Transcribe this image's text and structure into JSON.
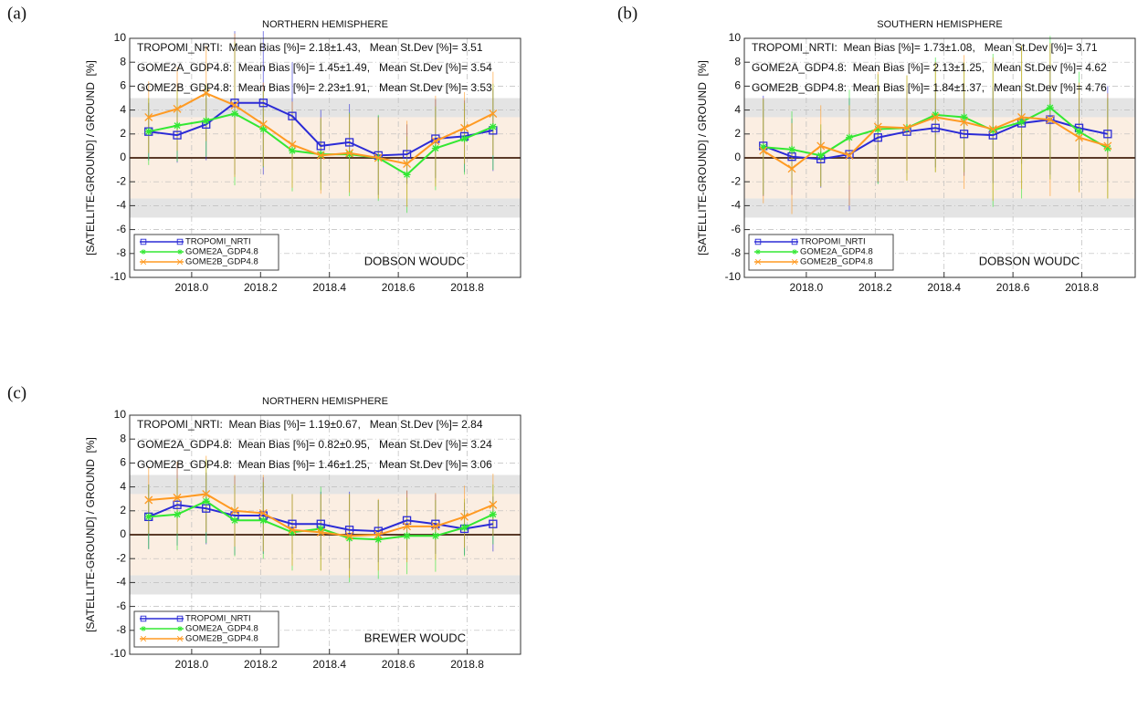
{
  "chart_data": [
    {
      "type": "line",
      "panel_label": "(a)",
      "title": "NORTHERN HEMISPHERE",
      "ylabel": "[SATELLITE-GROUND] / GROUND  [%]",
      "annotations": [
        "TROPOMI_NRTI:  Mean Bias [%]= 2.18±1.43,   Mean St.Dev [%]= 3.51",
        "GOME2A_GDP4.8:  Mean Bias [%]= 1.45±1.49,   Mean St.Dev [%]= 3.54",
        "GOME2B_GDP4.8:  Mean Bias [%]= 2.23±1.91,   Mean St.Dev [%]= 3.53"
      ],
      "station": "DOBSON WOUDC",
      "x": [
        2017.875,
        2017.958,
        2018.042,
        2018.125,
        2018.208,
        2018.292,
        2018.375,
        2018.458,
        2018.542,
        2018.625,
        2018.708,
        2018.792,
        2018.875
      ],
      "series": [
        {
          "name": "TROPOMI_NRTI",
          "color": "#2b2bd6",
          "marker": "square",
          "values": [
            2.2,
            1.9,
            2.8,
            4.6,
            4.6,
            3.5,
            1.0,
            1.3,
            0.2,
            0.3,
            1.6,
            1.8,
            2.3
          ],
          "errors": [
            2.4,
            2.3,
            3.0,
            6.0,
            6.0,
            4.5,
            3.0,
            3.2,
            3.3,
            2.5,
            3.3,
            3.0,
            3.4
          ]
        },
        {
          "name": "GOME2A_GDP4.8",
          "color": "#33e833",
          "marker": "asterisk",
          "values": [
            2.2,
            2.7,
            3.1,
            3.7,
            2.4,
            0.6,
            0.3,
            0.3,
            0.0,
            -1.4,
            0.8,
            1.6,
            2.6
          ],
          "errors": [
            2.8,
            3.0,
            3.0,
            6.0,
            3.2,
            3.4,
            3.0,
            3.5,
            3.6,
            3.2,
            3.5,
            3.0,
            3.6
          ]
        },
        {
          "name": "GOME2B_GDP4.8",
          "color": "#ff9a22",
          "marker": "x",
          "values": [
            3.4,
            4.1,
            5.4,
            4.4,
            2.8,
            1.1,
            0.2,
            0.4,
            0.0,
            -0.5,
            1.4,
            2.5,
            3.7
          ],
          "errors": [
            3.0,
            3.5,
            4.0,
            6.0,
            3.5,
            3.6,
            3.2,
            3.3,
            3.4,
            3.6,
            3.8,
            3.0,
            3.5
          ]
        }
      ],
      "xlim": [
        2017.82,
        2018.955
      ],
      "ylim": [
        -10,
        10
      ],
      "xticks": [
        {
          "value": 2018,
          "label": "2018.0"
        },
        2018.2,
        2018.4,
        2018.6,
        2018.8
      ],
      "yticks": [
        -10,
        -8,
        -6,
        -4,
        -2,
        0,
        2,
        4,
        6,
        8,
        10
      ],
      "grid": true,
      "legend": "lower left",
      "shaded_ranges": [
        {
          "from": 3.4,
          "to": 5,
          "color": "#e4e4e4"
        },
        {
          "from": -3.4,
          "to": 3.4,
          "color": "#fbeee2"
        },
        {
          "from": -5,
          "to": -3.4,
          "color": "#e4e4e4"
        }
      ]
    },
    {
      "type": "line",
      "panel_label": "(b)",
      "title": "SOUTHERN HEMISPHERE",
      "ylabel": "[SATELLITE-GROUND] / GROUND  [%]",
      "annotations": [
        "TROPOMI_NRTI:  Mean Bias [%]= 1.73±1.08,   Mean St.Dev [%]= 3.71",
        "GOME2A_GDP4.8:  Mean Bias [%]= 2.13±1.25,   Mean St.Dev [%]= 4.62",
        "GOME2B_GDP4.8:  Mean Bias [%]= 1.84±1.37,   Mean St.Dev [%]= 4.76"
      ],
      "station": "DOBSON WOUDC",
      "x": [
        2017.875,
        2017.958,
        2018.042,
        2018.125,
        2018.208,
        2018.292,
        2018.375,
        2018.458,
        2018.542,
        2018.625,
        2018.708,
        2018.792,
        2018.875
      ],
      "series": [
        {
          "name": "TROPOMI_NRTI",
          "color": "#2b2bd6",
          "marker": "square",
          "values": [
            1.0,
            0.1,
            -0.1,
            0.3,
            1.7,
            2.2,
            2.5,
            2.0,
            1.9,
            2.9,
            3.2,
            2.5,
            2.0
          ],
          "errors": [
            4.2,
            3.2,
            2.4,
            4.7,
            3.8,
            3.5,
            3.3,
            3.5,
            4.0,
            3.4,
            4.6,
            3.6,
            4.0
          ]
        },
        {
          "name": "GOME2A_GDP4.8",
          "color": "#33e833",
          "marker": "asterisk",
          "values": [
            0.9,
            0.7,
            0.2,
            1.7,
            2.4,
            2.5,
            3.6,
            3.4,
            2.3,
            3.0,
            4.2,
            2.2,
            0.8
          ],
          "errors": [
            4.0,
            3.2,
            2.6,
            4.0,
            4.6,
            4.4,
            4.8,
            4.6,
            6.4,
            6.4,
            6.0,
            5.0,
            4.2
          ]
        },
        {
          "name": "GOME2B_GDP4.8",
          "color": "#ff9a22",
          "marker": "x",
          "values": [
            0.6,
            -0.9,
            1.0,
            0.2,
            2.6,
            2.5,
            3.4,
            3.0,
            2.4,
            3.4,
            3.2,
            1.7,
            1.0
          ],
          "errors": [
            4.4,
            3.8,
            3.4,
            4.2,
            4.6,
            4.4,
            4.6,
            5.6,
            6.0,
            6.0,
            6.4,
            4.6,
            4.4
          ]
        }
      ],
      "xlim": [
        2017.82,
        2018.955
      ],
      "ylim": [
        -10,
        10
      ],
      "xticks": [
        {
          "value": 2018,
          "label": "2018.0"
        },
        2018.2,
        2018.4,
        2018.6,
        2018.8
      ],
      "yticks": [
        -10,
        -8,
        -6,
        -4,
        -2,
        0,
        2,
        4,
        6,
        8,
        10
      ],
      "grid": true,
      "legend": "lower left",
      "shaded_ranges": [
        {
          "from": 3.4,
          "to": 5,
          "color": "#e4e4e4"
        },
        {
          "from": -3.4,
          "to": 3.4,
          "color": "#fbeee2"
        },
        {
          "from": -5,
          "to": -3.4,
          "color": "#e4e4e4"
        }
      ]
    },
    {
      "type": "line",
      "panel_label": "(c)",
      "title": "NORTHERN HEMISPHERE",
      "ylabel": "[SATELLITE-GROUND] / GROUND  [%]",
      "annotations": [
        "TROPOMI_NRTI:  Mean Bias [%]= 1.19±0.67,   Mean St.Dev [%]= 2.84",
        "GOME2A_GDP4.8:  Mean Bias [%]= 0.82±0.95,   Mean St.Dev [%]= 3.24",
        "GOME2B_GDP4.8:  Mean Bias [%]= 1.46±1.25,   Mean St.Dev [%]= 3.06"
      ],
      "station": "BREWER WOUDC",
      "x": [
        2017.875,
        2017.958,
        2018.042,
        2018.125,
        2018.208,
        2018.292,
        2018.375,
        2018.458,
        2018.542,
        2018.625,
        2018.708,
        2018.792,
        2018.875
      ],
      "series": [
        {
          "name": "TROPOMI_NRTI",
          "color": "#2b2bd6",
          "marker": "square",
          "values": [
            1.5,
            2.5,
            2.2,
            1.6,
            1.6,
            0.9,
            0.9,
            0.4,
            0.3,
            1.2,
            0.9,
            0.5,
            0.9
          ],
          "errors": [
            2.7,
            3.4,
            3.0,
            3.3,
            3.2,
            2.5,
            2.7,
            3.2,
            2.6,
            2.5,
            2.5,
            2.2,
            2.3
          ]
        },
        {
          "name": "GOME2A_GDP4.8",
          "color": "#33e833",
          "marker": "asterisk",
          "values": [
            1.5,
            1.7,
            2.8,
            1.2,
            1.2,
            0.2,
            0.5,
            -0.3,
            -0.4,
            -0.1,
            -0.1,
            0.6,
            1.7
          ],
          "errors": [
            2.7,
            3.0,
            3.5,
            3.0,
            3.2,
            3.2,
            3.5,
            3.7,
            3.3,
            3.2,
            3.0,
            2.4,
            2.5
          ]
        },
        {
          "name": "GOME2B_GDP4.8",
          "color": "#ff9a22",
          "marker": "x",
          "values": [
            2.9,
            3.1,
            3.4,
            2.0,
            1.8,
            0.4,
            0.2,
            -0.1,
            0.0,
            0.7,
            0.7,
            1.5,
            2.5
          ],
          "errors": [
            2.8,
            3.0,
            3.2,
            3.0,
            3.2,
            3.0,
            3.2,
            3.5,
            3.0,
            3.0,
            2.8,
            2.6,
            2.6
          ]
        }
      ],
      "xlim": [
        2017.82,
        2018.955
      ],
      "ylim": [
        -10,
        10
      ],
      "xticks": [
        {
          "value": 2018,
          "label": "2018.0"
        },
        2018.2,
        2018.4,
        2018.6,
        2018.8
      ],
      "yticks": [
        -10,
        -8,
        -6,
        -4,
        -2,
        0,
        2,
        4,
        6,
        8,
        10
      ],
      "grid": true,
      "legend": "lower left",
      "shaded_ranges": [
        {
          "from": 3.4,
          "to": 5,
          "color": "#e4e4e4"
        },
        {
          "from": -3.4,
          "to": 3.4,
          "color": "#fbeee2"
        },
        {
          "from": -5,
          "to": -3.4,
          "color": "#e4e4e4"
        }
      ]
    }
  ]
}
